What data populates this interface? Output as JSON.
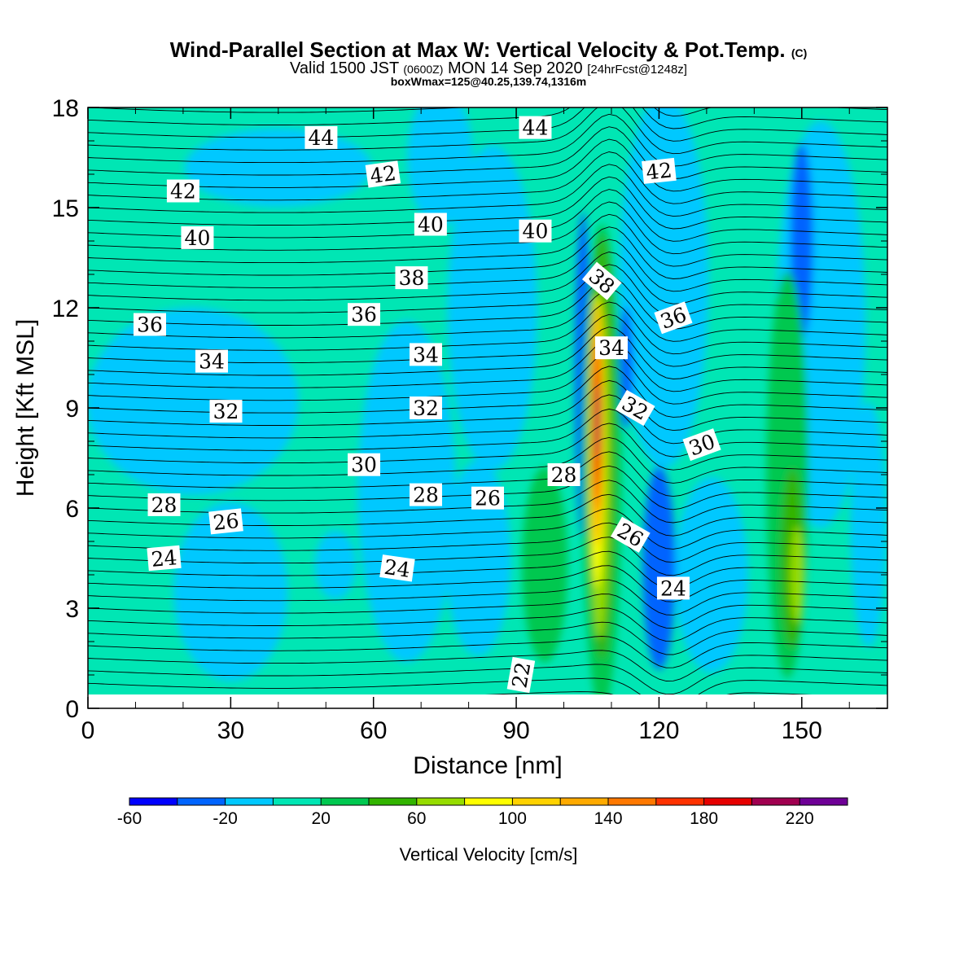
{
  "chart_data": {
    "type": "heatmap",
    "title": "Wind-Parallel Section at Max W: Vertical Velocity & Pot.Temp.",
    "title_mark": "(C)",
    "subtitle": {
      "pre": "Valid 1500 JST",
      "utc": "(0600Z)",
      "date": "MON 14 Sep 2020",
      "fcst": "[24hrFcst@1248z]"
    },
    "box_info": "boxWmax=125@40.25,139.74,1316m",
    "xlabel": "Distance [nm]",
    "ylabel": "Height [Kft MSL]",
    "xlim": [
      0,
      168
    ],
    "ylim": [
      0,
      18
    ],
    "x_ticks": [
      "0",
      "30",
      "60",
      "90",
      "120",
      "150"
    ],
    "y_ticks": [
      "0",
      "3",
      "6",
      "9",
      "12",
      "15",
      "18"
    ],
    "colorbar": {
      "label": "Vertical Velocity [cm/s]",
      "tick_labels": [
        "-60",
        "-20",
        "20",
        "60",
        "100",
        "140",
        "180",
        "220"
      ],
      "colors": [
        "#0000ff",
        "#0064ff",
        "#00c8ff",
        "#00e6b4",
        "#00c850",
        "#32b400",
        "#96dc00",
        "#ffff00",
        "#ffd200",
        "#ffaa00",
        "#ff7800",
        "#ff3200",
        "#e60000",
        "#a00050",
        "#6e0096"
      ]
    },
    "theta_contour_labels": [
      {
        "text": "44",
        "x": 49,
        "y": 17.1
      },
      {
        "text": "44",
        "x": 94,
        "y": 17.4
      },
      {
        "text": "42",
        "x": 20,
        "y": 15.5
      },
      {
        "text": "42",
        "x": 62,
        "y": 16.0
      },
      {
        "text": "42",
        "x": 120,
        "y": 16.1
      },
      {
        "text": "40",
        "x": 23,
        "y": 14.1
      },
      {
        "text": "40",
        "x": 72,
        "y": 14.5
      },
      {
        "text": "40",
        "x": 94,
        "y": 14.3
      },
      {
        "text": "38",
        "x": 68,
        "y": 12.9
      },
      {
        "text": "38",
        "x": 108,
        "y": 12.8
      },
      {
        "text": "36",
        "x": 13,
        "y": 11.5
      },
      {
        "text": "36",
        "x": 58,
        "y": 11.8
      },
      {
        "text": "36",
        "x": 123,
        "y": 11.7
      },
      {
        "text": "34",
        "x": 26,
        "y": 10.4
      },
      {
        "text": "34",
        "x": 71,
        "y": 10.6
      },
      {
        "text": "34",
        "x": 110,
        "y": 10.8
      },
      {
        "text": "32",
        "x": 29,
        "y": 8.9
      },
      {
        "text": "32",
        "x": 71,
        "y": 9.0
      },
      {
        "text": "32",
        "x": 115,
        "y": 9.0
      },
      {
        "text": "30",
        "x": 58,
        "y": 7.3
      },
      {
        "text": "30",
        "x": 129,
        "y": 7.9
      },
      {
        "text": "28",
        "x": 16,
        "y": 6.1
      },
      {
        "text": "28",
        "x": 71,
        "y": 6.4
      },
      {
        "text": "28",
        "x": 100,
        "y": 7.0
      },
      {
        "text": "26",
        "x": 29,
        "y": 5.6
      },
      {
        "text": "26",
        "x": 84,
        "y": 6.3
      },
      {
        "text": "26",
        "x": 114,
        "y": 5.2
      },
      {
        "text": "24",
        "x": 16,
        "y": 4.5
      },
      {
        "text": "24",
        "x": 65,
        "y": 4.2
      },
      {
        "text": "24",
        "x": 123,
        "y": 3.6
      },
      {
        "text": "22",
        "x": 91,
        "y": 1.0
      }
    ]
  }
}
